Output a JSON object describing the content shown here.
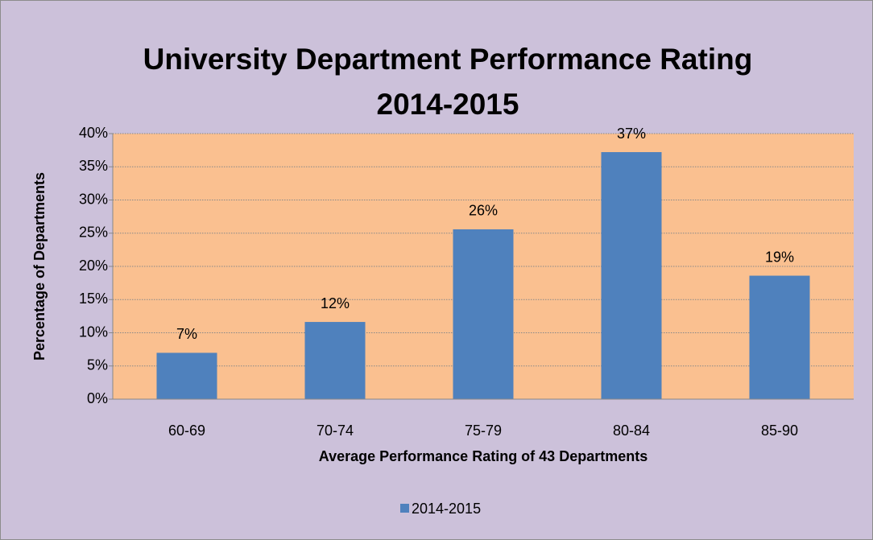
{
  "chart_data": {
    "type": "bar",
    "title": [
      "University  Department Performance Rating",
      "2014-2015"
    ],
    "x_label": "Average Performance Rating of 43 Departments",
    "y_label": "Percentage of Departments",
    "categories": [
      "60-69",
      "70-74",
      "75-79",
      "80-84",
      "85-90"
    ],
    "series": [
      {
        "name": "2014-2015",
        "color": "#4f81bd",
        "values": [
          6.98,
          11.63,
          25.58,
          37.21,
          18.6
        ],
        "value_labels": [
          "7%",
          "12%",
          "26%",
          "37%",
          "19%"
        ]
      }
    ],
    "ylim": [
      0,
      40
    ],
    "yticks": [
      {
        "value": 0,
        "label": "0%"
      },
      {
        "value": 5,
        "label": "5%"
      },
      {
        "value": 10,
        "label": "10%"
      },
      {
        "value": 15,
        "label": "15%"
      },
      {
        "value": 20,
        "label": "20%"
      },
      {
        "value": 25,
        "label": "25%"
      },
      {
        "value": 30,
        "label": "30%"
      },
      {
        "value": 35,
        "label": "35%"
      },
      {
        "value": 40,
        "label": "40%"
      }
    ],
    "grid": true,
    "legend": "bottom"
  }
}
